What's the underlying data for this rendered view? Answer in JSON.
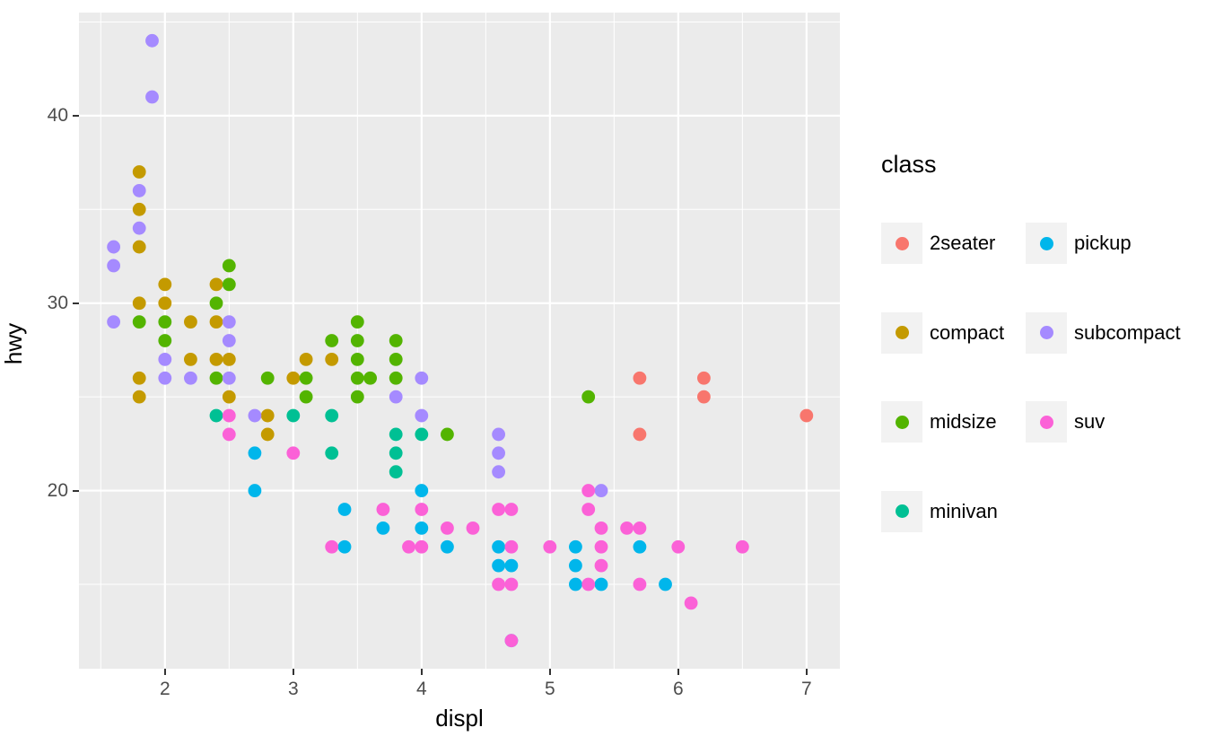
{
  "figure": {
    "x_axis_title": "displ",
    "y_axis_title": "hwy",
    "panel_background": "#EBEBEB",
    "gridline_color": "#FFFFFF",
    "tick_label_color": "#4D4D4D",
    "tick_mark_color": "#333333"
  },
  "legend": {
    "title": "class",
    "key_fill": "#F2F2F2",
    "columns": [
      [
        "2seater",
        "compact",
        "midsize",
        "minivan"
      ],
      [
        "pickup",
        "subcompact",
        "suv"
      ]
    ]
  },
  "chart_data": {
    "type": "scatter",
    "title": "",
    "xlabel": "displ",
    "ylabel": "hwy",
    "xlim": [
      1.33,
      7.26
    ],
    "ylim": [
      10.5,
      45.5
    ],
    "x_ticks": [
      2,
      3,
      4,
      5,
      6,
      7
    ],
    "y_ticks": [
      20,
      30,
      40
    ],
    "x_minor_ticks": [
      1.5,
      2.5,
      3.5,
      4.5,
      5.5,
      6.5
    ],
    "y_minor_ticks": [
      15,
      25,
      35,
      45
    ],
    "grid": true,
    "legend_position": "right",
    "legend_title": "class",
    "point_radius": 7.4,
    "series": [
      {
        "name": "2seater",
        "color": "#F8766D",
        "points": [
          [
            5.7,
            26
          ],
          [
            5.7,
            23
          ],
          [
            6.2,
            26
          ],
          [
            6.2,
            25
          ],
          [
            7.0,
            24
          ]
        ]
      },
      {
        "name": "compact",
        "color": "#C49A00",
        "points": [
          [
            1.8,
            37
          ],
          [
            1.8,
            35
          ],
          [
            1.8,
            33
          ],
          [
            1.8,
            30
          ],
          [
            1.8,
            26
          ],
          [
            1.8,
            25
          ],
          [
            2.0,
            31
          ],
          [
            2.0,
            30
          ],
          [
            2.2,
            29
          ],
          [
            2.2,
            27
          ],
          [
            2.4,
            31
          ],
          [
            2.4,
            29
          ],
          [
            2.4,
            27
          ],
          [
            2.5,
            27
          ],
          [
            2.5,
            25
          ],
          [
            2.8,
            24
          ],
          [
            2.8,
            23
          ],
          [
            3.0,
            26
          ],
          [
            3.1,
            27
          ],
          [
            3.3,
            27
          ]
        ]
      },
      {
        "name": "midsize",
        "color": "#53B400",
        "points": [
          [
            1.8,
            29
          ],
          [
            2.0,
            29
          ],
          [
            2.0,
            28
          ],
          [
            2.4,
            30
          ],
          [
            2.4,
            26
          ],
          [
            2.5,
            32
          ],
          [
            2.5,
            31
          ],
          [
            2.8,
            26
          ],
          [
            3.1,
            26
          ],
          [
            3.1,
            25
          ],
          [
            3.3,
            28
          ],
          [
            3.5,
            29
          ],
          [
            3.5,
            28
          ],
          [
            3.5,
            27
          ],
          [
            3.5,
            26
          ],
          [
            3.5,
            25
          ],
          [
            3.6,
            26
          ],
          [
            3.8,
            28
          ],
          [
            3.8,
            27
          ],
          [
            3.8,
            26
          ],
          [
            4.2,
            23
          ],
          [
            5.3,
            25
          ]
        ]
      },
      {
        "name": "minivan",
        "color": "#00C094",
        "points": [
          [
            2.4,
            24
          ],
          [
            3.0,
            24
          ],
          [
            3.3,
            24
          ],
          [
            3.3,
            22
          ],
          [
            3.8,
            23
          ],
          [
            3.8,
            22
          ],
          [
            3.8,
            21
          ],
          [
            4.0,
            23
          ]
        ]
      },
      {
        "name": "pickup",
        "color": "#00B6EB",
        "points": [
          [
            2.7,
            22
          ],
          [
            2.7,
            20
          ],
          [
            3.4,
            19
          ],
          [
            3.4,
            17
          ],
          [
            3.7,
            18
          ],
          [
            4.0,
            20
          ],
          [
            4.0,
            18
          ],
          [
            4.2,
            17
          ],
          [
            4.6,
            17
          ],
          [
            4.6,
            16
          ],
          [
            4.7,
            16
          ],
          [
            4.7,
            12
          ],
          [
            5.2,
            17
          ],
          [
            5.2,
            16
          ],
          [
            5.2,
            15
          ],
          [
            5.4,
            15
          ],
          [
            5.7,
            17
          ],
          [
            5.9,
            15
          ]
        ]
      },
      {
        "name": "subcompact",
        "color": "#A58AFF",
        "points": [
          [
            1.6,
            33
          ],
          [
            1.6,
            32
          ],
          [
            1.6,
            29
          ],
          [
            1.8,
            36
          ],
          [
            1.8,
            34
          ],
          [
            1.9,
            44
          ],
          [
            1.9,
            41
          ],
          [
            2.0,
            27
          ],
          [
            2.0,
            26
          ],
          [
            2.2,
            26
          ],
          [
            2.5,
            29
          ],
          [
            2.5,
            28
          ],
          [
            2.5,
            26
          ],
          [
            2.7,
            24
          ],
          [
            3.8,
            25
          ],
          [
            4.0,
            26
          ],
          [
            4.0,
            24
          ],
          [
            4.6,
            23
          ],
          [
            4.6,
            22
          ],
          [
            4.6,
            21
          ],
          [
            5.4,
            20
          ]
        ]
      },
      {
        "name": "suv",
        "color": "#FB61D7",
        "points": [
          [
            2.5,
            24
          ],
          [
            2.5,
            23
          ],
          [
            3.0,
            22
          ],
          [
            3.3,
            17
          ],
          [
            3.7,
            19
          ],
          [
            3.9,
            17
          ],
          [
            4.0,
            19
          ],
          [
            4.0,
            17
          ],
          [
            4.2,
            18
          ],
          [
            4.4,
            18
          ],
          [
            4.6,
            19
          ],
          [
            4.6,
            15
          ],
          [
            4.7,
            19
          ],
          [
            4.7,
            17
          ],
          [
            4.7,
            15
          ],
          [
            4.7,
            12
          ],
          [
            5.0,
            17
          ],
          [
            5.3,
            20
          ],
          [
            5.3,
            19
          ],
          [
            5.3,
            15
          ],
          [
            5.4,
            18
          ],
          [
            5.4,
            17
          ],
          [
            5.4,
            16
          ],
          [
            5.6,
            18
          ],
          [
            5.7,
            18
          ],
          [
            5.7,
            15
          ],
          [
            6.0,
            17
          ],
          [
            6.1,
            14
          ],
          [
            6.5,
            17
          ]
        ]
      }
    ]
  }
}
